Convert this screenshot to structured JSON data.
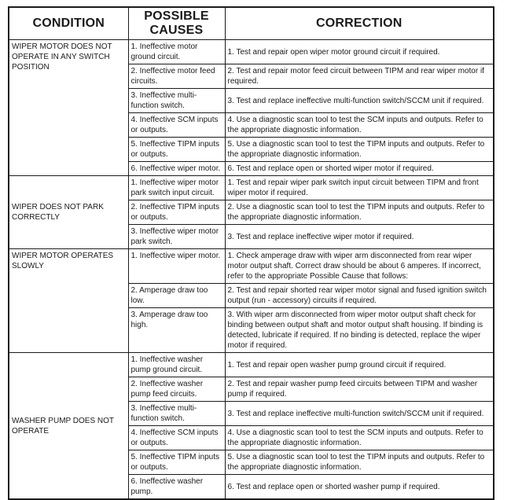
{
  "table": {
    "columns": [
      "CONDITION",
      "POSSIBLE CAUSES",
      "CORRECTION"
    ],
    "sections": [
      {
        "condition": "WIPER MOTOR DOES NOT OPERATE IN ANY SWITCH POSITION",
        "condition_valign": "top",
        "rows": [
          {
            "cause": "1. Ineffective motor ground circuit.",
            "correction": "1. Test and repair open wiper motor ground circuit if required."
          },
          {
            "cause": "2. Ineffective motor feed circuits.",
            "correction": "2. Test and repair motor feed circuit between TIPM and rear wiper motor if required."
          },
          {
            "cause": "3. Ineffective multi-function switch.",
            "correction": "3. Test and replace ineffective multi-function switch/SCCM unit if required."
          },
          {
            "cause": "4. Ineffective SCM inputs or outputs.",
            "correction": "4. Use a diagnostic scan tool to test the SCM inputs and outputs. Refer to the appropriate diagnostic information."
          },
          {
            "cause": "5. Ineffective TIPM inputs or outputs.",
            "correction": "5. Use a diagnostic scan tool to test the TIPM inputs and outputs. Refer to the appropriate diagnostic information."
          },
          {
            "cause": "6. Ineffective wiper motor.",
            "correction": "6. Test and replace open or shorted wiper motor if required."
          }
        ]
      },
      {
        "condition": "WIPER DOES NOT PARK CORRECTLY",
        "condition_valign": "middle",
        "rows": [
          {
            "cause": "1. Ineffective wiper motor park switch input circuit.",
            "correction": "1. Test and repair wiper park switch input circuit between TIPM and front wiper motor if required."
          },
          {
            "cause": "2. Ineffective TIPM inputs or outputs.",
            "correction": "2. Use a diagnostic scan tool to test the TIPM inputs and outputs. Refer to the appropriate diagnostic information."
          },
          {
            "cause": "3. Ineffective wiper motor park switch.",
            "correction": "3. Test and replace ineffective wiper motor if required."
          }
        ]
      },
      {
        "condition": "WIPER MOTOR OPERATES SLOWLY",
        "condition_valign": "top",
        "rows": [
          {
            "cause": "1. Ineffective wiper motor.",
            "correction": "1. Check amperage draw with wiper arm disconnected from rear wiper motor output shaft. Correct draw should be about 6 amperes. If incorrect, refer to the appropriate Possible Cause that follows:"
          },
          {
            "cause": "2. Amperage draw too low.",
            "correction": "2. Test and repair shorted rear wiper motor signal and fused ignition switch output (run - accessory) circuits if required."
          },
          {
            "cause": "3. Amperage draw too high.",
            "correction": "3. With wiper arm disconnected from wiper motor output shaft check for binding between output shaft and motor output shaft housing. If binding is detected, lubricate if required. If no binding is detected, replace the wiper motor if required."
          }
        ]
      },
      {
        "condition": "WASHER PUMP DOES NOT OPERATE",
        "condition_valign": "middle",
        "rows": [
          {
            "cause": "1. Ineffective washer pump ground circuit.",
            "correction": "1. Test and repair open washer pump ground circuit if required."
          },
          {
            "cause": "2. Ineffective washer pump feed circuits.",
            "correction": "2. Test and repair washer pump feed circuits between TIPM and washer pump if required."
          },
          {
            "cause": "3. Ineffective multi-function switch.",
            "correction": "3. Test and replace ineffective multi-function switch/SCCM unit if required."
          },
          {
            "cause": "4. Ineffective SCM inputs or outputs.",
            "correction": "4. Use a diagnostic scan tool to test the SCM inputs and outputs. Refer to the appropriate diagnostic information."
          },
          {
            "cause": "5. Ineffective TIPM inputs or outputs.",
            "correction": "5. Use a diagnostic scan tool to test the TIPM inputs and outputs. Refer to the appropriate diagnostic information."
          },
          {
            "cause": "6. Ineffective washer pump.",
            "correction": "6. Test and replace open or shorted washer pump if required."
          }
        ]
      }
    ]
  }
}
